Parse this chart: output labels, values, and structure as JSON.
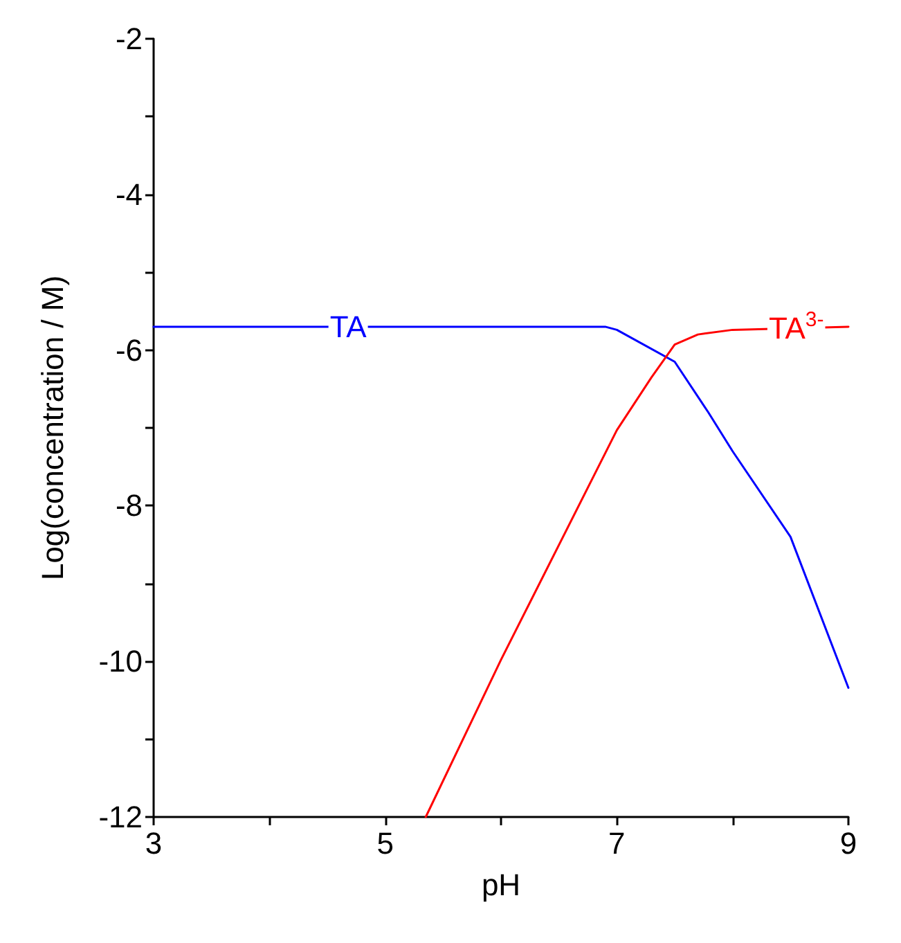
{
  "chart_data": {
    "type": "line",
    "xlabel": "pH",
    "ylabel": "Log(concentration / M)",
    "xlim": [
      3,
      9
    ],
    "ylim": [
      -12,
      -2
    ],
    "xticks": [
      3,
      {
        "value": 4,
        "label": null
      },
      5,
      {
        "value": 6,
        "label": null
      },
      7,
      {
        "value": 8,
        "label": null
      },
      9
    ],
    "yticks": [
      -12,
      {
        "value": -11,
        "label": null
      },
      -10,
      {
        "value": -9,
        "label": null
      },
      -8,
      {
        "value": -7,
        "label": null
      },
      -6,
      {
        "value": -5,
        "label": null
      },
      -4,
      {
        "value": -3,
        "label": null
      },
      -2
    ],
    "grid": false,
    "legend": false,
    "marker": "none",
    "line_style": "solid",
    "series": [
      {
        "name": "TA",
        "color": "#0000ff",
        "x": [
          3,
          6.9,
          7.0,
          7.5,
          7.79,
          8.0,
          8.5,
          9.0
        ],
        "values": [
          -5.7,
          -5.7,
          -5.74,
          -6.15,
          -6.8,
          -7.3,
          -8.4,
          -10.34
        ]
      },
      {
        "name": "TA$^{3-}$",
        "color": "#ff0000",
        "x": [
          5.35,
          6.0,
          7.0,
          7.3,
          7.5,
          7.7,
          8.0,
          9.0
        ],
        "values": [
          -12,
          -9.98,
          -7.03,
          -6.35,
          -5.93,
          -5.8,
          -5.74,
          -5.7
        ]
      }
    ]
  }
}
